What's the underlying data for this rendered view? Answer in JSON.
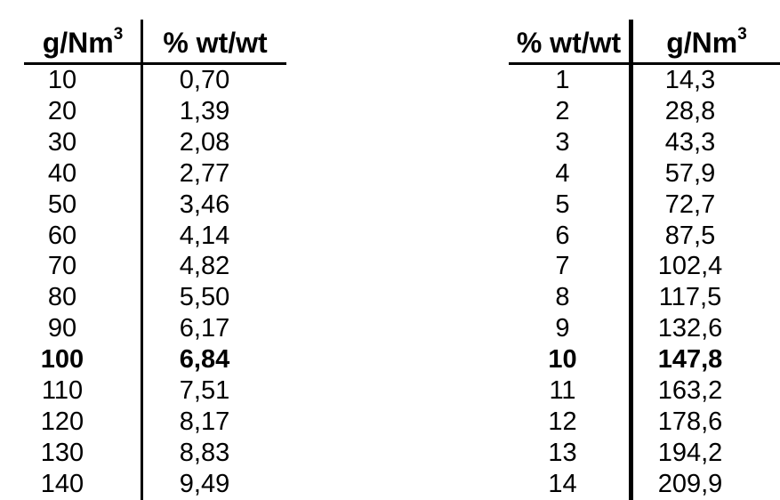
{
  "page": {
    "background": "#ffffff",
    "text_color": "#000000",
    "rule_color": "#000000"
  },
  "tables": [
    {
      "name": "gnm3-to-percent-wtwt",
      "cell_names": [
        "gnm3-value",
        "percent-wtwt-value"
      ],
      "header": [
        {
          "label": "g/Nm",
          "sup": "3"
        },
        {
          "label": "% wt/wt",
          "sup": ""
        }
      ],
      "rows": [
        {
          "values": [
            "10",
            "0,70"
          ],
          "bold": false
        },
        {
          "values": [
            "20",
            "1,39"
          ],
          "bold": false
        },
        {
          "values": [
            "30",
            "2,08"
          ],
          "bold": false
        },
        {
          "values": [
            "40",
            "2,77"
          ],
          "bold": false
        },
        {
          "values": [
            "50",
            "3,46"
          ],
          "bold": false
        },
        {
          "values": [
            "60",
            "4,14"
          ],
          "bold": false
        },
        {
          "values": [
            "70",
            "4,82"
          ],
          "bold": false
        },
        {
          "values": [
            "80",
            "5,50"
          ],
          "bold": false
        },
        {
          "values": [
            "90",
            "6,17"
          ],
          "bold": false
        },
        {
          "values": [
            "100",
            "6,84"
          ],
          "bold": true
        },
        {
          "values": [
            "110",
            "7,51"
          ],
          "bold": false
        },
        {
          "values": [
            "120",
            "8,17"
          ],
          "bold": false
        },
        {
          "values": [
            "130",
            "8,83"
          ],
          "bold": false
        },
        {
          "values": [
            "140",
            "9,49"
          ],
          "bold": false
        }
      ]
    },
    {
      "name": "percent-wtwt-to-gnm3",
      "cell_names": [
        "percent-wtwt-value",
        "gnm3-value"
      ],
      "header": [
        {
          "label": "% wt/wt",
          "sup": ""
        },
        {
          "label": "g/Nm",
          "sup": "3"
        }
      ],
      "rows": [
        {
          "values": [
            "1",
            "14,3"
          ],
          "bold": false
        },
        {
          "values": [
            "2",
            "28,8"
          ],
          "bold": false
        },
        {
          "values": [
            "3",
            "43,3"
          ],
          "bold": false
        },
        {
          "values": [
            "4",
            "57,9"
          ],
          "bold": false
        },
        {
          "values": [
            "5",
            "72,7"
          ],
          "bold": false
        },
        {
          "values": [
            "6",
            "87,5"
          ],
          "bold": false
        },
        {
          "values": [
            "7",
            "102,4"
          ],
          "bold": false
        },
        {
          "values": [
            "8",
            "117,5"
          ],
          "bold": false
        },
        {
          "values": [
            "9",
            "132,6"
          ],
          "bold": false
        },
        {
          "values": [
            "10",
            "147,8"
          ],
          "bold": true
        },
        {
          "values": [
            "11",
            "163,2"
          ],
          "bold": false
        },
        {
          "values": [
            "12",
            "178,6"
          ],
          "bold": false
        },
        {
          "values": [
            "13",
            "194,2"
          ],
          "bold": false
        },
        {
          "values": [
            "14",
            "209,9"
          ],
          "bold": false
        }
      ]
    }
  ]
}
